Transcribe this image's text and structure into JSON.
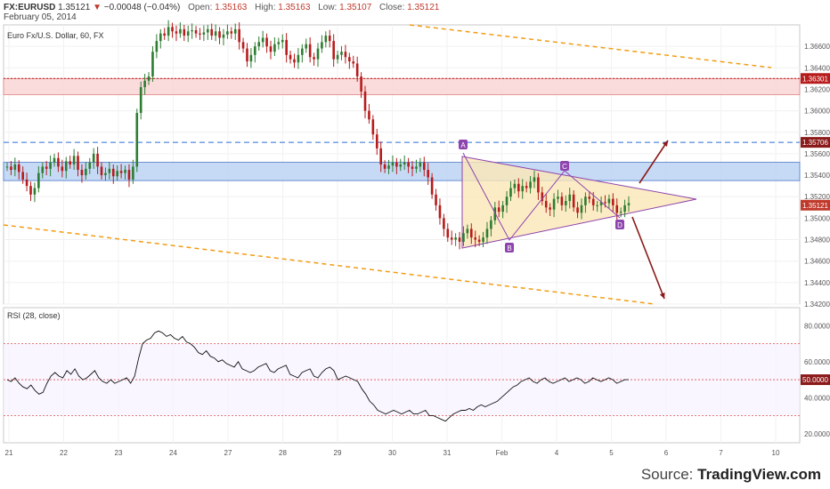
{
  "header": {
    "symbol": "FX:EURUSD",
    "last": "1.35121",
    "change": "−0.00048 (−0.04%)",
    "open_label": "Open:",
    "open": "1.35163",
    "high_label": "High:",
    "high": "1.35163",
    "low_label": "Low:",
    "low": "1.35107",
    "close_label": "Close:",
    "close": "1.35121",
    "date": "February 05, 2014"
  },
  "main_panel": {
    "title": "Euro Fx/U.S. Dollar, 60, FX"
  },
  "rsi_panel": {
    "title": "RSI (28, close)"
  },
  "source": {
    "prefix": "Source: ",
    "brand": "TradingView.com"
  },
  "colors": {
    "candle_up": "#2e7d32",
    "candle_down": "#b71c1c",
    "resistance_zone": "#f9d6d6",
    "support_zone": "#bcd3f5",
    "channel": "#f39c12",
    "triangle": "#fbe7b6",
    "pattern": "#8e44ad",
    "arrow": "#8b1a1a",
    "level_label": "#b71c1c",
    "level_label_blue": "#8b1a1a",
    "last_price_label": "#c0392b"
  },
  "chart_data": [
    {
      "type": "candlestick",
      "title": "Euro Fx/U.S. Dollar, 60, FX",
      "ylim": [
        1.342,
        1.368
      ],
      "y_ticks": [
        "1.36600",
        "1.36400",
        "1.36200",
        "1.36000",
        "1.35800",
        "1.35600",
        "1.35400",
        "1.35200",
        "1.35000",
        "1.34800",
        "1.34600",
        "1.34400",
        "1.34200"
      ],
      "x_ticks": [
        "21",
        "22",
        "23",
        "24",
        "27",
        "28",
        "29",
        "30",
        "31",
        "Feb",
        "4",
        "5",
        "6",
        "7",
        "10"
      ],
      "horizontal_levels": [
        {
          "value": 1.36301,
          "label": "1.36301",
          "style": "dotted",
          "color": "#b71c1c"
        },
        {
          "value": 1.35706,
          "label": "1.35706",
          "style": "dashed",
          "color": "#2b6fd6"
        }
      ],
      "last_price": {
        "value": 1.35121,
        "label": "1.35121"
      },
      "zones": [
        {
          "name": "resistance",
          "from": 1.3615,
          "to": 1.363
        },
        {
          "name": "support",
          "from": 1.3535,
          "to": 1.3552
        }
      ],
      "pattern_points": [
        "A",
        "B",
        "C",
        "D"
      ],
      "series": [
        {
          "name": "EURUSD",
          "close_path": [
            1.3548,
            1.3545,
            1.355,
            1.3543,
            1.3536,
            1.353,
            1.3522,
            1.3528,
            1.3542,
            1.3548,
            1.3546,
            1.3552,
            1.3556,
            1.3548,
            1.3544,
            1.3553,
            1.355,
            1.3558,
            1.3545,
            1.354,
            1.3546,
            1.3552,
            1.356,
            1.3548,
            1.354,
            1.3542,
            1.3546,
            1.3539,
            1.3544,
            1.3542,
            1.3545,
            1.3536,
            1.3548,
            1.3598,
            1.3622,
            1.3628,
            1.3632,
            1.3655,
            1.3665,
            1.3672,
            1.367,
            1.3678,
            1.3674,
            1.3672,
            1.3676,
            1.367,
            1.3674,
            1.3675,
            1.3672,
            1.3671,
            1.3673,
            1.3676,
            1.367,
            1.3674,
            1.3668,
            1.3671,
            1.3674,
            1.3672,
            1.3676,
            1.3664,
            1.3658,
            1.3646,
            1.3652,
            1.366,
            1.3664,
            1.3668,
            1.366,
            1.3655,
            1.3662,
            1.3664,
            1.3666,
            1.3652,
            1.3648,
            1.3645,
            1.3652,
            1.3658,
            1.3662,
            1.365,
            1.3648,
            1.3658,
            1.3664,
            1.367,
            1.3665,
            1.3648,
            1.3652,
            1.3655,
            1.365,
            1.3646,
            1.3644,
            1.3632,
            1.3618,
            1.36,
            1.3592,
            1.3578,
            1.3565,
            1.355,
            1.3546,
            1.3549,
            1.3552,
            1.3548,
            1.355,
            1.3552,
            1.3548,
            1.3546,
            1.3548,
            1.3552,
            1.3545,
            1.3538,
            1.3522,
            1.3512,
            1.35,
            1.349,
            1.3482,
            1.348,
            1.3482,
            1.3478,
            1.3486,
            1.349,
            1.3482,
            1.348,
            1.3478,
            1.3482,
            1.349,
            1.3498,
            1.351,
            1.3506,
            1.3512,
            1.352,
            1.3528,
            1.3532,
            1.3525,
            1.353,
            1.3528,
            1.3534,
            1.3538,
            1.3524,
            1.3516,
            1.351,
            1.3508,
            1.3518,
            1.352,
            1.3512,
            1.3516,
            1.3522,
            1.351,
            1.3505,
            1.3512,
            1.352,
            1.3518,
            1.3512,
            1.3512,
            1.3515,
            1.3514,
            1.3518,
            1.3512,
            1.3505,
            1.3506,
            1.3512,
            1.3514
          ]
        }
      ]
    },
    {
      "type": "line",
      "title": "RSI (28, close)",
      "ylim": [
        15,
        90
      ],
      "y_ticks": [
        "80.0000",
        "60.0000",
        "40.0000",
        "20.0000"
      ],
      "reference_levels": [
        70,
        50,
        30
      ],
      "last_value_label": "50.0000",
      "series": [
        {
          "name": "RSI",
          "values": [
            50,
            49,
            51,
            48,
            46,
            45,
            47,
            44,
            42,
            43,
            48,
            52,
            54,
            52,
            51,
            55,
            53,
            56,
            52,
            50,
            51,
            53,
            55,
            51,
            49,
            48,
            50,
            48,
            49,
            50,
            51,
            48,
            52,
            62,
            70,
            72,
            73,
            76,
            77,
            76,
            74,
            75,
            73,
            72,
            74,
            71,
            70,
            68,
            65,
            64,
            66,
            63,
            62,
            60,
            61,
            59,
            58,
            57,
            60,
            56,
            55,
            54,
            55,
            57,
            58,
            59,
            55,
            54,
            56,
            57,
            58,
            53,
            52,
            51,
            54,
            55,
            56,
            52,
            51,
            54,
            56,
            57,
            55,
            50,
            51,
            52,
            51,
            50,
            49,
            45,
            42,
            38,
            36,
            33,
            32,
            31,
            32,
            33,
            32,
            31,
            32,
            33,
            31,
            31,
            32,
            33,
            30,
            30,
            29,
            28,
            27,
            29,
            31,
            32,
            33,
            33,
            34,
            33,
            35,
            36,
            35,
            36,
            37,
            38,
            40,
            42,
            44,
            46,
            47,
            49,
            50,
            51,
            49,
            48,
            50,
            51,
            49,
            48,
            49,
            50,
            51,
            49,
            50,
            51,
            50,
            48,
            49,
            51,
            50,
            49,
            50,
            51,
            50,
            48,
            49,
            50,
            50
          ]
        }
      ]
    }
  ]
}
